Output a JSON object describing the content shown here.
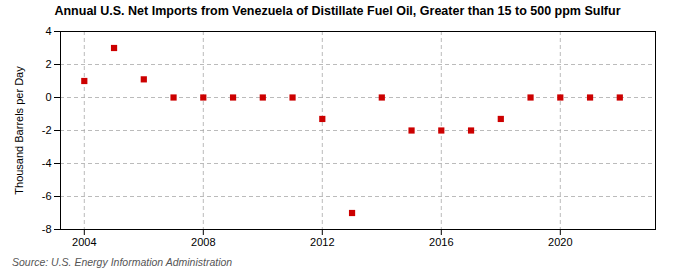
{
  "chart_data": {
    "type": "scatter",
    "title": "Annual U.S. Net Imports from Venezuela of Distillate Fuel Oil, Greater than 15 to 500 ppm Sulfur",
    "ylabel": "Thousand Barrels per Day",
    "source": "Source: U.S. Energy Information Administration",
    "x": [
      2004,
      2005,
      2006,
      2007,
      2008,
      2009,
      2010,
      2011,
      2012,
      2013,
      2014,
      2015,
      2016,
      2017,
      2018,
      2019,
      2020,
      2021,
      2022
    ],
    "values": [
      1.0,
      3.0,
      1.1,
      0.0,
      0.0,
      0.0,
      0.0,
      0.0,
      -1.3,
      -7.0,
      0.0,
      -2.0,
      -2.0,
      -2.0,
      -1.3,
      0.0,
      0.0,
      0.0,
      0.0
    ],
    "color": "#cc0000",
    "marker": "square",
    "xlim": [
      2003.2,
      2023.2
    ],
    "xticks": [
      2004,
      2008,
      2012,
      2016,
      2020
    ],
    "ylim": [
      -8,
      4
    ],
    "yticks": [
      -8,
      -6,
      -4,
      -2,
      0,
      2,
      4
    ],
    "grid": true
  }
}
